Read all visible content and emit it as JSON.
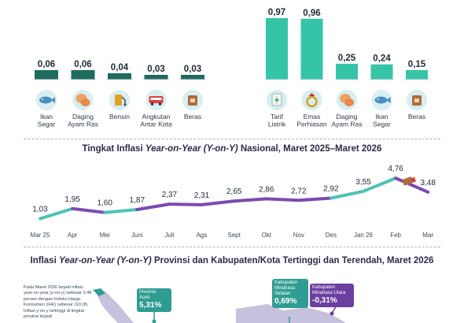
{
  "left_panel": {
    "items": [
      {
        "label_lines": [
          "Ikan",
          "Segar"
        ],
        "value": "0,06",
        "icon": "fish-icon"
      },
      {
        "label_lines": [
          "Daging",
          "Ayam Ras"
        ],
        "value": "0,06",
        "icon": "chicken-icon"
      },
      {
        "label_lines": [
          "Bensin"
        ],
        "value": "0,04",
        "icon": "fuel-icon"
      },
      {
        "label_lines": [
          "Angkutan",
          "Antar Kota"
        ],
        "value": "0,03",
        "icon": "bus-icon"
      },
      {
        "label_lines": [
          "Beras"
        ],
        "value": "0,03",
        "icon": "rice-sack-icon"
      }
    ]
  },
  "right_panel": {
    "items": [
      {
        "label_lines": [
          "Tarif",
          "Listrik"
        ],
        "value": "0,97",
        "icon": "electric-bill-icon"
      },
      {
        "label_lines": [
          "Emas",
          "Perhiasan"
        ],
        "value": "0,96",
        "icon": "gold-jewelry-icon"
      },
      {
        "label_lines": [
          "Daging",
          "Ayam Ras"
        ],
        "value": "0,25",
        "icon": "chicken-icon"
      },
      {
        "label_lines": [
          "Ikan",
          "Segar"
        ],
        "value": "0,24",
        "icon": "fish-icon"
      },
      {
        "label_lines": [
          "Beras"
        ],
        "value": "0,15",
        "icon": "rice-sack-icon"
      }
    ]
  },
  "line_section": {
    "title_pre": "Tingkat Inflasi ",
    "title_italic": "Year-on-Year (Y-on-Y)",
    "title_post": " Nasional, Maret 2025–Maret 2026"
  },
  "map_section": {
    "title_pre": "Inflasi ",
    "title_italic": "Year-on-Year (Y-on-Y)",
    "title_post": " Provinsi dan Kabupaten/Kota Tertinggi dan Terendah, Maret 2026",
    "note": "Pada Maret 2026 terjadi inflasi year-on-year (y-on-y) sebesar 3,48 persen dengan Indeks Harga Konsumen (IHK) sebesar 110,95. Inflasi y-on-y tertinggi di tingkat provinsi terjadi",
    "callouts": [
      {
        "name": "Provinsi Aceh",
        "lines": [
          "Provinsi",
          "Aceh"
        ],
        "value": "5,31%"
      },
      {
        "name": "Kabupaten Minahasa Selatan",
        "lines": [
          "Kabupaten",
          "Minahasa",
          "Selatan"
        ],
        "value": "0,69%"
      },
      {
        "name": "Kabupaten Minahasa Utara",
        "lines": [
          "Kabupaten",
          "Minahasa Utara"
        ],
        "value": "-0,31%"
      }
    ]
  },
  "colors": {
    "bar_left": "#1f6b5e",
    "bar_right": "#36c4a8",
    "line_teal": "#4fc3b4",
    "line_purple": "#7b4bb0",
    "icon_bg": "#d8eef0"
  },
  "chart_data": [
    {
      "type": "bar",
      "categories": [
        "Ikan Segar",
        "Daging Ayam Ras",
        "Bensin",
        "Angkutan Antar Kota",
        "Beras"
      ],
      "values": [
        0.06,
        0.06,
        0.04,
        0.03,
        0.03
      ],
      "title": ""
    },
    {
      "type": "bar",
      "categories": [
        "Tarif Listrik",
        "Emas Perhiasan",
        "Daging Ayam Ras",
        "Ikan Segar",
        "Beras"
      ],
      "values": [
        0.97,
        0.96,
        0.25,
        0.24,
        0.15
      ],
      "title": ""
    },
    {
      "type": "line",
      "title": "Tingkat Inflasi Year-on-Year (Y-on-Y) Nasional, Maret 2025–Maret 2026",
      "x": [
        "Mar 25",
        "Apr",
        "Mei",
        "Juni",
        "Juli",
        "Ags",
        "Sept",
        "Okt",
        "Nov",
        "Des",
        "Jan 26",
        "Feb",
        "Mar"
      ],
      "values": [
        1.03,
        1.95,
        1.6,
        1.87,
        2.37,
        2.31,
        2.65,
        2.86,
        2.72,
        2.92,
        3.55,
        4.76,
        3.48
      ],
      "labels": [
        "1,03",
        "1,95",
        "1,60",
        "1,87",
        "2,37",
        "2,31",
        "2,65",
        "2,86",
        "2,72",
        "2,92",
        "3,55",
        "4,76",
        "3,48"
      ]
    }
  ]
}
